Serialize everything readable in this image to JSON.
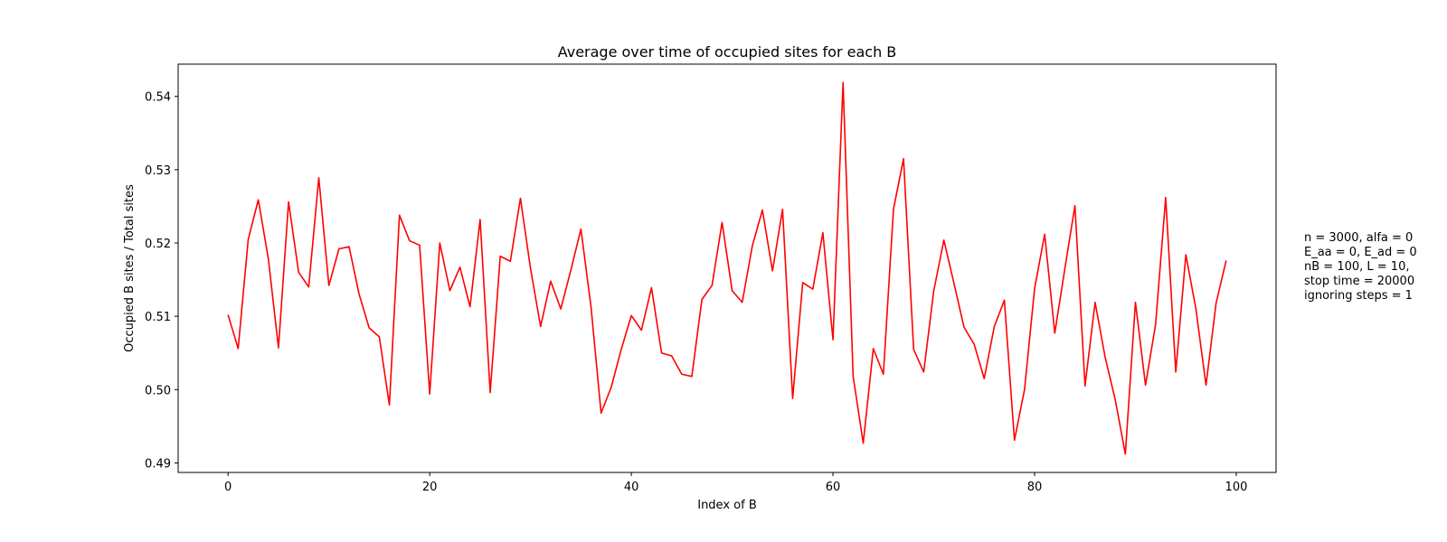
{
  "chart_data": {
    "type": "line",
    "title": "Average over time of occupied sites for each B",
    "xlabel": "Index of B",
    "ylabel": "Occupied B sites / Total sites",
    "xlim": [
      -4.95,
      103.95
    ],
    "ylim": [
      0.4887,
      0.5444
    ],
    "xticks": [
      0,
      20,
      40,
      60,
      80,
      100
    ],
    "yticks": [
      0.49,
      0.5,
      0.51,
      0.52,
      0.53,
      0.54
    ],
    "yticklabels": [
      "0.49",
      "0.50",
      "0.51",
      "0.52",
      "0.53",
      "0.54"
    ],
    "grid": false,
    "line_color": "#ff0000",
    "annotation_lines": [
      "n = 3000, alfa = 0",
      "E_aa = 0, E_ad = 0",
      "nB = 100, L = 10,",
      "stop time = 20000",
      "ignoring steps = 1"
    ],
    "series": [
      {
        "x": [
          0,
          1,
          2,
          3,
          4,
          5,
          6,
          7,
          8,
          9,
          10,
          11,
          12,
          13,
          14,
          15,
          16,
          17,
          18,
          19,
          20,
          21,
          22,
          23,
          24,
          25,
          26,
          27,
          28,
          29,
          30,
          31,
          32,
          33,
          34,
          35,
          36,
          37,
          38,
          39,
          40,
          41,
          42,
          43,
          44,
          45,
          46,
          47,
          48,
          49,
          50,
          51,
          52,
          53,
          54,
          55,
          56,
          57,
          58,
          59,
          60,
          61,
          62,
          63,
          64,
          65,
          66,
          67,
          68,
          69,
          70,
          71,
          72,
          73,
          74,
          75,
          76,
          77,
          78,
          79,
          80,
          81,
          82,
          83,
          84,
          85,
          86,
          87,
          88,
          89,
          90,
          91,
          92,
          93,
          94,
          95,
          96,
          97,
          98,
          99
        ],
        "values": [
          0.5102,
          0.5056,
          0.5205,
          0.5259,
          0.5178,
          0.5057,
          0.5256,
          0.516,
          0.514,
          0.5289,
          0.5142,
          0.5192,
          0.5195,
          0.513,
          0.5084,
          0.5072,
          0.4979,
          0.5238,
          0.5203,
          0.5197,
          0.4994,
          0.52,
          0.5135,
          0.5167,
          0.5113,
          0.5232,
          0.4996,
          0.5182,
          0.5175,
          0.5261,
          0.5165,
          0.5086,
          0.5148,
          0.511,
          0.5163,
          0.5219,
          0.5113,
          0.4968,
          0.5003,
          0.5055,
          0.5101,
          0.5081,
          0.5139,
          0.505,
          0.5046,
          0.5021,
          0.5018,
          0.5123,
          0.5142,
          0.5228,
          0.5135,
          0.5119,
          0.5196,
          0.5245,
          0.5162,
          0.5246,
          0.4988,
          0.5146,
          0.5137,
          0.5214,
          0.5068,
          0.5419,
          0.5018,
          0.4927,
          0.5056,
          0.5021,
          0.5246,
          0.5315,
          0.5055,
          0.5024,
          0.5135,
          0.5204,
          0.5145,
          0.5085,
          0.5062,
          0.5015,
          0.5086,
          0.5122,
          0.4931,
          0.5,
          0.5138,
          0.5212,
          0.5077,
          0.5165,
          0.5251,
          0.5005,
          0.5119,
          0.5044,
          0.4986,
          0.4912,
          0.5119,
          0.5006,
          0.5089,
          0.5262,
          0.5024,
          0.5184,
          0.511,
          0.5006,
          0.5118,
          0.5176
        ]
      }
    ]
  }
}
